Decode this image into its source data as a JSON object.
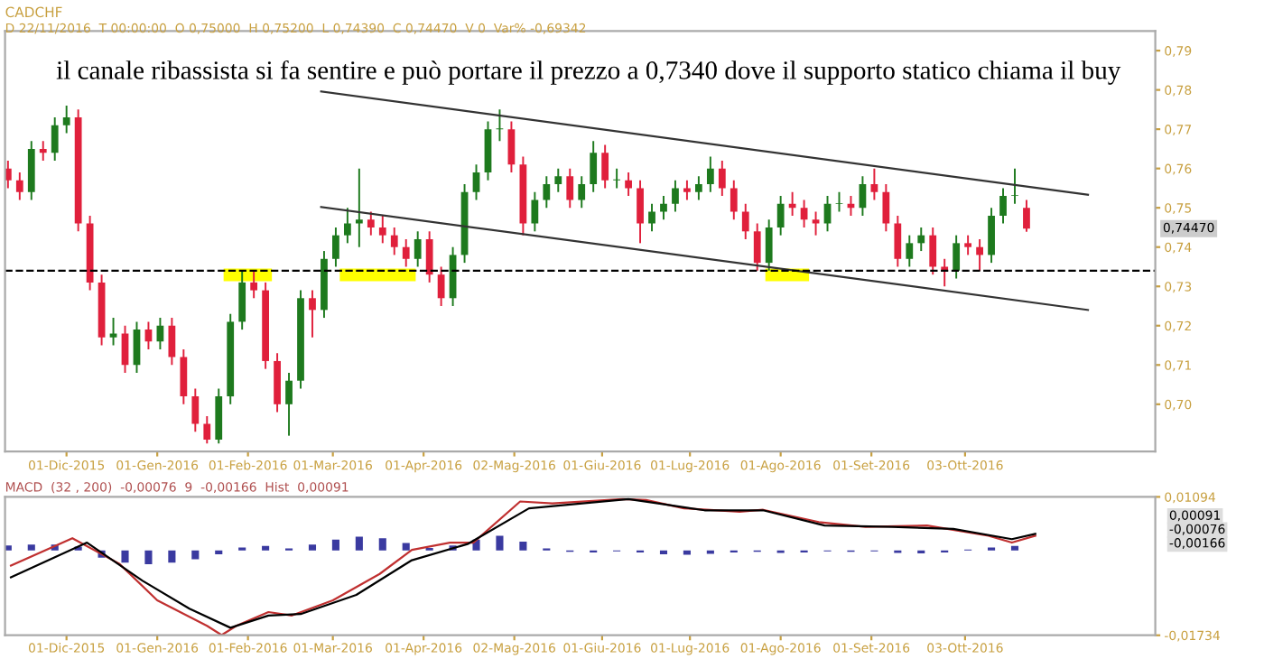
{
  "chart_data": [
    {
      "type": "candlestick",
      "title": "CADCHF",
      "subtitle": "D 22/11/2016  T 00:00:00  O 0,75000  H 0,75200  L 0,74390  C 0,74470  V 0  Var% -0,69342",
      "annotations": [
        "il canale ribassista si fa sentire e può portare il prezzo a 0,7340 dove il supporto statico chiama il buy",
        {
          "text": "0,74470",
          "y": 0.7447
        }
      ],
      "x": [
        "2015-11-11",
        "2015-11-15",
        "2015-11-19",
        "2015-11-23",
        "2015-11-27",
        "2015-12-01",
        "2015-12-05",
        "2015-12-09",
        "2015-12-13",
        "2015-12-17",
        "2015-12-21",
        "2015-12-25",
        "2015-12-29",
        "2016-01-02",
        "2016-01-06",
        "2016-01-10",
        "2016-01-14",
        "2016-01-18",
        "2016-01-22",
        "2016-01-26",
        "2016-01-30",
        "2016-02-03",
        "2016-02-07",
        "2016-02-11",
        "2016-02-15",
        "2016-02-19",
        "2016-02-23",
        "2016-02-27",
        "2016-03-02",
        "2016-03-06",
        "2016-03-10",
        "2016-03-14",
        "2016-03-18",
        "2016-03-22",
        "2016-03-26",
        "2016-03-30",
        "2016-04-03",
        "2016-04-07",
        "2016-04-11",
        "2016-04-15",
        "2016-04-19",
        "2016-04-23",
        "2016-04-27",
        "2016-05-01",
        "2016-05-05",
        "2016-05-09",
        "2016-05-13",
        "2016-05-17",
        "2016-05-21",
        "2016-05-25",
        "2016-05-29",
        "2016-06-02",
        "2016-06-06",
        "2016-06-10",
        "2016-06-14",
        "2016-06-18",
        "2016-06-22",
        "2016-06-26",
        "2016-06-30",
        "2016-07-04",
        "2016-07-08",
        "2016-07-12",
        "2016-07-16",
        "2016-07-20",
        "2016-07-24",
        "2016-07-28",
        "2016-08-01",
        "2016-08-05",
        "2016-08-09",
        "2016-08-13",
        "2016-08-17",
        "2016-08-21",
        "2016-08-25",
        "2016-08-29",
        "2016-09-02",
        "2016-09-06",
        "2016-09-10",
        "2016-09-14",
        "2016-09-18",
        "2016-09-22",
        "2016-09-26",
        "2016-09-30",
        "2016-10-04",
        "2016-10-08",
        "2016-10-12",
        "2016-10-16",
        "2016-10-20",
        "2016-10-24"
      ],
      "ohlc": [
        [
          0.76,
          0.762,
          0.755,
          0.757
        ],
        [
          0.757,
          0.759,
          0.752,
          0.754
        ],
        [
          0.754,
          0.767,
          0.752,
          0.765
        ],
        [
          0.765,
          0.767,
          0.762,
          0.764
        ],
        [
          0.764,
          0.773,
          0.762,
          0.771
        ],
        [
          0.771,
          0.776,
          0.769,
          0.773
        ],
        [
          0.773,
          0.775,
          0.744,
          0.746
        ],
        [
          0.746,
          0.748,
          0.729,
          0.731
        ],
        [
          0.731,
          0.733,
          0.715,
          0.717
        ],
        [
          0.717,
          0.722,
          0.715,
          0.718
        ],
        [
          0.718,
          0.72,
          0.708,
          0.71
        ],
        [
          0.71,
          0.721,
          0.708,
          0.719
        ],
        [
          0.719,
          0.721,
          0.714,
          0.716
        ],
        [
          0.716,
          0.722,
          0.714,
          0.72
        ],
        [
          0.72,
          0.722,
          0.71,
          0.712
        ],
        [
          0.712,
          0.714,
          0.7,
          0.702
        ],
        [
          0.702,
          0.704,
          0.693,
          0.695
        ],
        [
          0.695,
          0.697,
          0.69,
          0.691
        ],
        [
          0.691,
          0.704,
          0.69,
          0.702
        ],
        [
          0.702,
          0.723,
          0.7,
          0.721
        ],
        [
          0.721,
          0.734,
          0.719,
          0.731
        ],
        [
          0.731,
          0.734,
          0.727,
          0.729
        ],
        [
          0.729,
          0.731,
          0.709,
          0.711
        ],
        [
          0.711,
          0.713,
          0.698,
          0.7
        ],
        [
          0.7,
          0.708,
          0.692,
          0.706
        ],
        [
          0.706,
          0.729,
          0.704,
          0.727
        ],
        [
          0.727,
          0.729,
          0.717,
          0.724
        ],
        [
          0.724,
          0.739,
          0.722,
          0.737
        ],
        [
          0.737,
          0.745,
          0.735,
          0.743
        ],
        [
          0.743,
          0.75,
          0.741,
          0.746
        ],
        [
          0.746,
          0.76,
          0.74,
          0.747
        ],
        [
          0.747,
          0.749,
          0.743,
          0.745
        ],
        [
          0.745,
          0.748,
          0.741,
          0.743
        ],
        [
          0.743,
          0.745,
          0.738,
          0.74
        ],
        [
          0.74,
          0.742,
          0.735,
          0.737
        ],
        [
          0.737,
          0.744,
          0.735,
          0.742
        ],
        [
          0.742,
          0.744,
          0.731,
          0.733
        ],
        [
          0.733,
          0.735,
          0.725,
          0.727
        ],
        [
          0.727,
          0.74,
          0.725,
          0.738
        ],
        [
          0.738,
          0.756,
          0.736,
          0.754
        ],
        [
          0.754,
          0.761,
          0.752,
          0.759
        ],
        [
          0.759,
          0.772,
          0.757,
          0.77
        ],
        [
          0.77,
          0.775,
          0.767,
          0.77
        ],
        [
          0.77,
          0.772,
          0.759,
          0.761
        ],
        [
          0.761,
          0.763,
          0.743,
          0.746
        ],
        [
          0.746,
          0.754,
          0.744,
          0.752
        ],
        [
          0.752,
          0.758,
          0.75,
          0.756
        ],
        [
          0.756,
          0.76,
          0.754,
          0.758
        ],
        [
          0.758,
          0.76,
          0.75,
          0.752
        ],
        [
          0.752,
          0.758,
          0.75,
          0.756
        ],
        [
          0.756,
          0.767,
          0.754,
          0.764
        ],
        [
          0.764,
          0.766,
          0.755,
          0.757
        ],
        [
          0.757,
          0.76,
          0.755,
          0.757
        ],
        [
          0.757,
          0.759,
          0.753,
          0.755
        ],
        [
          0.755,
          0.757,
          0.741,
          0.746
        ],
        [
          0.746,
          0.751,
          0.744,
          0.749
        ],
        [
          0.749,
          0.753,
          0.747,
          0.751
        ],
        [
          0.751,
          0.757,
          0.749,
          0.755
        ],
        [
          0.755,
          0.757,
          0.752,
          0.754
        ],
        [
          0.754,
          0.758,
          0.752,
          0.756
        ],
        [
          0.756,
          0.763,
          0.754,
          0.76
        ],
        [
          0.76,
          0.762,
          0.753,
          0.755
        ],
        [
          0.755,
          0.757,
          0.747,
          0.749
        ],
        [
          0.749,
          0.751,
          0.742,
          0.744
        ],
        [
          0.744,
          0.746,
          0.734,
          0.736
        ],
        [
          0.736,
          0.747,
          0.734,
          0.745
        ],
        [
          0.745,
          0.753,
          0.743,
          0.751
        ],
        [
          0.751,
          0.754,
          0.748,
          0.75
        ],
        [
          0.75,
          0.752,
          0.745,
          0.747
        ],
        [
          0.747,
          0.749,
          0.743,
          0.746
        ],
        [
          0.746,
          0.753,
          0.744,
          0.751
        ],
        [
          0.751,
          0.754,
          0.749,
          0.751
        ],
        [
          0.751,
          0.753,
          0.748,
          0.75
        ],
        [
          0.75,
          0.758,
          0.748,
          0.756
        ],
        [
          0.756,
          0.76,
          0.752,
          0.754
        ],
        [
          0.754,
          0.756,
          0.744,
          0.746
        ],
        [
          0.746,
          0.748,
          0.735,
          0.737
        ],
        [
          0.737,
          0.743,
          0.735,
          0.741
        ],
        [
          0.741,
          0.745,
          0.739,
          0.743
        ],
        [
          0.743,
          0.745,
          0.733,
          0.735
        ],
        [
          0.735,
          0.737,
          0.73,
          0.734
        ],
        [
          0.734,
          0.743,
          0.732,
          0.741
        ],
        [
          0.741,
          0.743,
          0.738,
          0.74
        ],
        [
          0.74,
          0.742,
          0.734,
          0.738
        ],
        [
          0.738,
          0.75,
          0.736,
          0.748
        ],
        [
          0.748,
          0.755,
          0.746,
          0.753
        ],
        [
          0.753,
          0.76,
          0.751,
          0.753
        ],
        [
          0.75,
          0.752,
          0.7439,
          0.7447
        ]
      ],
      "colors": [
        "#e0203c",
        "#e0203c",
        "#1e7a1e",
        "#e0203c",
        "#1e7a1e",
        "#1e7a1e",
        "#e0203c",
        "#e0203c",
        "#e0203c",
        "#1e7a1e",
        "#e0203c",
        "#1e7a1e",
        "#e0203c",
        "#1e7a1e",
        "#e0203c",
        "#e0203c",
        "#e0203c",
        "#e0203c",
        "#1e7a1e",
        "#1e7a1e",
        "#1e7a1e",
        "#e0203c",
        "#e0203c",
        "#e0203c",
        "#1e7a1e",
        "#1e7a1e",
        "#e0203c",
        "#1e7a1e",
        "#1e7a1e",
        "#1e7a1e",
        "#1e7a1e",
        "#e0203c",
        "#e0203c",
        "#e0203c",
        "#e0203c",
        "#1e7a1e",
        "#e0203c",
        "#e0203c",
        "#1e7a1e",
        "#1e7a1e",
        "#1e7a1e",
        "#1e7a1e",
        "#1e7a1e",
        "#e0203c",
        "#e0203c",
        "#1e7a1e",
        "#1e7a1e",
        "#1e7a1e",
        "#e0203c",
        "#1e7a1e",
        "#1e7a1e",
        "#e0203c",
        "#1e7a1e",
        "#e0203c",
        "#e0203c",
        "#1e7a1e",
        "#1e7a1e",
        "#1e7a1e",
        "#e0203c",
        "#1e7a1e",
        "#1e7a1e",
        "#e0203c",
        "#e0203c",
        "#e0203c",
        "#e0203c",
        "#1e7a1e",
        "#1e7a1e",
        "#e0203c",
        "#e0203c",
        "#e0203c",
        "#1e7a1e",
        "#1e7a1e",
        "#e0203c",
        "#1e7a1e",
        "#e0203c",
        "#e0203c",
        "#e0203c",
        "#1e7a1e",
        "#1e7a1e",
        "#e0203c",
        "#e0203c",
        "#1e7a1e",
        "#e0203c",
        "#e0203c",
        "#1e7a1e",
        "#1e7a1e",
        "#1e7a1e",
        "#e0203c"
      ],
      "series": [
        {
          "type": "line",
          "x": [
            "2016-02-26",
            "2016-11-14"
          ],
          "values": [
            0.7796,
            0.7533
          ],
          "color": "#333333"
        },
        {
          "type": "line",
          "x": [
            "2016-02-26",
            "2016-11-14"
          ],
          "values": [
            0.7502,
            0.724
          ],
          "color": "#333333"
        }
      ],
      "ref_lines": [
        {
          "axis": "y",
          "value": 0.734,
          "color": "#000000",
          "line_style": "dashed"
        }
      ],
      "xlim": [
        "2015-11-10",
        "2016-12-07"
      ],
      "xticks": [
        {
          "value": "2015-12-01",
          "label": "01-Dic-2015"
        },
        {
          "value": "2016-01-01",
          "label": "01-Gen-2016"
        },
        {
          "value": "2016-02-01",
          "label": "01-Feb-2016"
        },
        {
          "value": "2016-03-01",
          "label": "01-Mar-2016"
        },
        {
          "value": "2016-04-01",
          "label": "01-Apr-2016"
        },
        {
          "value": "2016-05-02",
          "label": "02-Mag-2016"
        },
        {
          "value": "2016-06-01",
          "label": "01-Giu-2016"
        },
        {
          "value": "2016-07-01",
          "label": "01-Lug-2016"
        },
        {
          "value": "2016-08-01",
          "label": "01-Ago-2016"
        },
        {
          "value": "2016-09-01",
          "label": "01-Set-2016"
        },
        {
          "value": "2016-10-03",
          "label": "03-Ott-2016"
        }
      ],
      "ylim": [
        0.688,
        0.795
      ],
      "yticks": [
        {
          "value": 0.7,
          "label": "0,70"
        },
        {
          "value": 0.71,
          "label": "0,71"
        },
        {
          "value": 0.72,
          "label": "0,72"
        },
        {
          "value": 0.73,
          "label": "0,73"
        },
        {
          "value": 0.74,
          "label": "0,74"
        },
        {
          "value": 0.75,
          "label": "0,75"
        },
        {
          "value": 0.76,
          "label": "0,76"
        },
        {
          "value": 0.77,
          "label": "0,77"
        },
        {
          "value": 0.78,
          "label": "0,78"
        },
        {
          "value": 0.79,
          "label": "0,79"
        }
      ]
    },
    {
      "type": "line",
      "title": "MACD  (32 , 200)  -0,00076  9  -0,00166  Hist  0,00091",
      "annotations": [
        "0,00091",
        "-0,00076",
        "-0,00166"
      ],
      "series": [
        {
          "type": "bar",
          "color": "#3a3aa0",
          "x": [
            "2015-11-11",
            "2015-11-19",
            "2015-11-27",
            "2015-12-05",
            "2015-12-13",
            "2015-12-21",
            "2015-12-29",
            "2016-01-06",
            "2016-01-14",
            "2016-01-22",
            "2016-01-30",
            "2016-02-07",
            "2016-02-15",
            "2016-02-23",
            "2016-03-02",
            "2016-03-10",
            "2016-03-18",
            "2016-03-26",
            "2016-04-03",
            "2016-04-11",
            "2016-04-19",
            "2016-04-27",
            "2016-05-05",
            "2016-05-13",
            "2016-05-21",
            "2016-05-29",
            "2016-06-06",
            "2016-06-14",
            "2016-06-22",
            "2016-06-30",
            "2016-07-08",
            "2016-07-16",
            "2016-07-24",
            "2016-08-01",
            "2016-08-09",
            "2016-08-17",
            "2016-08-25",
            "2016-09-02",
            "2016-09-10",
            "2016-09-18",
            "2016-09-26",
            "2016-10-04",
            "2016-10-12",
            "2016-10-20"
          ],
          "values": [
            0.001,
            0.0012,
            0.0012,
            0.0008,
            -0.0015,
            -0.0025,
            -0.0028,
            -0.0025,
            -0.0018,
            -0.0008,
            0.0006,
            0.0009,
            0.0004,
            0.0012,
            0.0022,
            0.0028,
            0.0025,
            0.0015,
            0.0005,
            0.001,
            0.0022,
            0.003,
            0.0018,
            0.0004,
            -0.0003,
            -0.0004,
            -0.0002,
            -0.0004,
            -0.0008,
            -0.0009,
            -0.0007,
            -0.0004,
            -0.0003,
            -0.0005,
            -0.0004,
            -0.0002,
            -0.0003,
            -0.0002,
            -0.0005,
            -0.0006,
            -0.0004,
            0.0002,
            0.0006,
            0.0009
          ]
        },
        {
          "type": "line",
          "color": "#c03030",
          "x": [
            "2015-11-12",
            "2015-12-03",
            "2015-12-19",
            "2016-01-01",
            "2016-01-18",
            "2016-01-23",
            "2016-01-28",
            "2016-02-08",
            "2016-02-16",
            "2016-03-01",
            "2016-03-17",
            "2016-03-28",
            "2016-04-10",
            "2016-04-18",
            "2016-05-04",
            "2016-05-15",
            "2016-06-08",
            "2016-06-16",
            "2016-06-29",
            "2016-07-18",
            "2016-07-26",
            "2016-08-14",
            "2016-08-30",
            "2016-09-20",
            "2016-10-11",
            "2016-10-19",
            "2016-10-27"
          ],
          "values": [
            -0.0031,
            0.0025,
            -0.0027,
            -0.0102,
            -0.0154,
            -0.0173,
            -0.0154,
            -0.0126,
            -0.0133,
            -0.0102,
            -0.0048,
            0.0001,
            0.0016,
            0.0016,
            0.01,
            0.0096,
            0.0105,
            0.0103,
            0.0086,
            0.0079,
            0.0083,
            0.0058,
            0.0048,
            0.0051,
            0.003,
            0.0016,
            0.003
          ]
        },
        {
          "type": "line",
          "color": "#000000",
          "x": [
            "2015-11-12",
            "2015-12-08",
            "2015-12-27",
            "2016-01-12",
            "2016-01-26",
            "2016-02-08",
            "2016-02-19",
            "2016-03-09",
            "2016-03-28",
            "2016-04-16",
            "2016-05-07",
            "2016-06-10",
            "2016-06-18",
            "2016-07-06",
            "2016-07-26",
            "2016-08-16",
            "2016-09-08",
            "2016-09-29",
            "2016-10-19",
            "2016-10-27"
          ],
          "values": [
            -0.0055,
            0.0016,
            -0.0062,
            -0.0119,
            -0.0158,
            -0.0133,
            -0.013,
            -0.0091,
            -0.002,
            0.0013,
            0.0086,
            0.0105,
            0.0098,
            0.0082,
            0.0082,
            0.0051,
            0.0048,
            0.0044,
            0.0023,
            0.0034
          ]
        }
      ],
      "xlim": [
        "2015-11-10",
        "2016-12-07"
      ],
      "xticks": [
        {
          "value": "2015-12-01",
          "label": "01-Dic-2015"
        },
        {
          "value": "2016-01-01",
          "label": "01-Gen-2016"
        },
        {
          "value": "2016-02-01",
          "label": "01-Feb-2016"
        },
        {
          "value": "2016-03-01",
          "label": "01-Mar-2016"
        },
        {
          "value": "2016-04-01",
          "label": "01-Apr-2016"
        },
        {
          "value": "2016-05-02",
          "label": "02-Mag-2016"
        },
        {
          "value": "2016-06-01",
          "label": "01-Giu-2016"
        },
        {
          "value": "2016-07-01",
          "label": "01-Lug-2016"
        },
        {
          "value": "2016-08-01",
          "label": "01-Ago-2016"
        },
        {
          "value": "2016-09-01",
          "label": "01-Set-2016"
        },
        {
          "value": "2016-10-03",
          "label": "03-Ott-2016"
        }
      ],
      "ylim": [
        -0.01734,
        0.01094
      ],
      "yticks": [
        {
          "value": -0.01734,
          "label": "-0,01734"
        },
        {
          "value": 0.01094,
          "label": "0,01094"
        }
      ]
    }
  ]
}
